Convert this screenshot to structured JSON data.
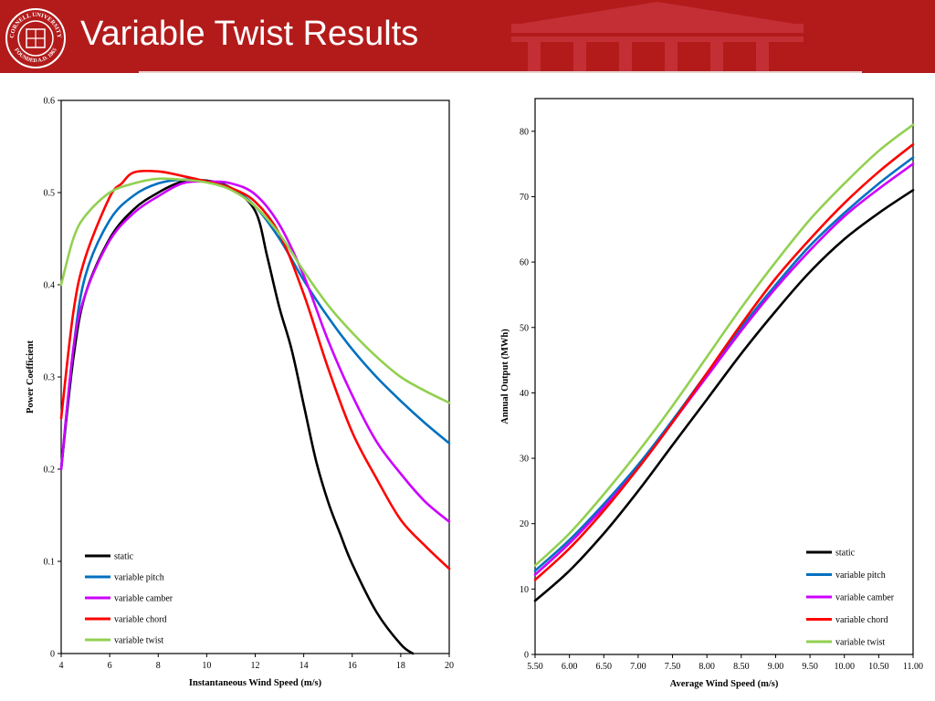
{
  "slide": {
    "title": "Variable Twist Results",
    "logo_text_top": "CORNELL UNIVERSITY",
    "logo_text_bottom": "FOUNDED A.D. 1865",
    "colors": {
      "header": "#b31b1b",
      "building": "#c6333a",
      "text": "#ffffff"
    }
  },
  "chart_data": [
    {
      "type": "line",
      "title": "",
      "xlabel": "Instantaneous Wind Speed (m/s)",
      "ylabel": "Power Coefficient",
      "xlim": [
        4,
        20
      ],
      "ylim": [
        0,
        0.6
      ],
      "xticks": [
        4,
        6,
        8,
        10,
        12,
        14,
        16,
        18,
        20
      ],
      "yticks": [
        0,
        0.1,
        0.2,
        0.3,
        0.4,
        0.5,
        0.6
      ],
      "tick_labels_x": [
        "4",
        "6",
        "8",
        "10",
        "12",
        "14",
        "16",
        "18",
        "20"
      ],
      "tick_labels_y": [
        "0",
        "0.1",
        "0.2",
        "0.3",
        "0.4",
        "0.5",
        "0.6"
      ],
      "grid": false,
      "legend": "bottom-left",
      "series": [
        {
          "name": "static",
          "color": "#000000",
          "x": [
            4,
            4.5,
            5,
            6,
            7,
            8,
            9,
            10,
            11,
            12,
            12.5,
            13,
            13.5,
            14,
            14.5,
            15,
            15.5,
            16,
            17,
            18,
            18.5
          ],
          "y": [
            0.2,
            0.32,
            0.39,
            0.45,
            0.482,
            0.5,
            0.512,
            0.513,
            0.505,
            0.48,
            0.43,
            0.375,
            0.33,
            0.27,
            0.21,
            0.165,
            0.13,
            0.097,
            0.045,
            0.01,
            0
          ]
        },
        {
          "name": "variable pitch",
          "color": "#0070c0",
          "x": [
            4,
            4.5,
            5,
            6,
            7,
            8,
            9,
            10,
            11,
            12,
            13,
            14,
            15,
            16,
            17,
            18,
            19,
            20
          ],
          "y": [
            0.2,
            0.33,
            0.41,
            0.47,
            0.497,
            0.51,
            0.514,
            0.512,
            0.505,
            0.485,
            0.45,
            0.405,
            0.365,
            0.33,
            0.3,
            0.274,
            0.25,
            0.228
          ]
        },
        {
          "name": "variable camber",
          "color": "#cc00ff",
          "x": [
            4,
            4.5,
            5,
            6,
            7,
            8,
            9,
            10,
            11,
            12,
            13,
            14,
            15,
            16,
            17,
            18,
            19,
            20
          ],
          "y": [
            0.2,
            0.33,
            0.39,
            0.448,
            0.478,
            0.496,
            0.51,
            0.512,
            0.51,
            0.498,
            0.465,
            0.41,
            0.34,
            0.28,
            0.23,
            0.195,
            0.165,
            0.143
          ]
        },
        {
          "name": "variable chord",
          "color": "#ff0000",
          "x": [
            4,
            4.5,
            5,
            6,
            6.5,
            7,
            8,
            9,
            10,
            11,
            12,
            13,
            14,
            15,
            16,
            17,
            18,
            19,
            20
          ],
          "y": [
            0.255,
            0.37,
            0.43,
            0.495,
            0.51,
            0.522,
            0.523,
            0.518,
            0.512,
            0.505,
            0.49,
            0.455,
            0.39,
            0.31,
            0.24,
            0.19,
            0.145,
            0.117,
            0.092
          ]
        },
        {
          "name": "variable twist",
          "color": "#92d050",
          "x": [
            4,
            4.5,
            5,
            6,
            7,
            8,
            9,
            10,
            11,
            12,
            13,
            14,
            15,
            16,
            17,
            18,
            19,
            20
          ],
          "y": [
            0.4,
            0.45,
            0.475,
            0.5,
            0.51,
            0.515,
            0.514,
            0.511,
            0.503,
            0.485,
            0.455,
            0.415,
            0.378,
            0.348,
            0.322,
            0.3,
            0.285,
            0.272
          ]
        }
      ]
    },
    {
      "type": "line",
      "title": "",
      "xlabel": "Average Wind Speed (m/s)",
      "ylabel": "Annual Output (MWh)",
      "xlim": [
        5.5,
        11
      ],
      "ylim": [
        0,
        85
      ],
      "xticks": [
        5.5,
        6,
        6.5,
        7,
        7.5,
        8,
        8.5,
        9,
        9.5,
        10,
        10.5,
        11
      ],
      "yticks": [
        0,
        10,
        20,
        30,
        40,
        50,
        60,
        70,
        80
      ],
      "tick_labels_x": [
        "5.50",
        "6.00",
        "6.50",
        "7.00",
        "7.50",
        "8.00",
        "8.50",
        "9.00",
        "9.50",
        "10.00",
        "10.50",
        "11.00"
      ],
      "tick_labels_y": [
        "0",
        "10",
        "20",
        "30",
        "40",
        "50",
        "60",
        "70",
        "80"
      ],
      "grid": false,
      "legend": "bottom-right",
      "series": [
        {
          "name": "static",
          "color": "#000000",
          "x": [
            5.5,
            6,
            6.5,
            7,
            7.5,
            8,
            8.5,
            9,
            9.5,
            10,
            10.5,
            11
          ],
          "y": [
            8.2,
            12.8,
            18.5,
            25,
            32,
            39,
            46,
            52.5,
            58.5,
            63.5,
            67.5,
            71
          ]
        },
        {
          "name": "variable pitch",
          "color": "#0070c0",
          "x": [
            5.5,
            6,
            6.5,
            7,
            7.5,
            8,
            8.5,
            9,
            9.5,
            10,
            10.5,
            11
          ],
          "y": [
            12.8,
            17.5,
            23,
            29,
            35.8,
            43,
            50,
            56.5,
            62.5,
            67.5,
            72,
            76
          ]
        },
        {
          "name": "variable camber",
          "color": "#cc00ff",
          "x": [
            5.5,
            6,
            6.5,
            7,
            7.5,
            8,
            8.5,
            9,
            9.5,
            10,
            10.5,
            11
          ],
          "y": [
            12.2,
            17,
            22.5,
            28.5,
            35.5,
            42.5,
            49.5,
            56,
            61.8,
            67,
            71.2,
            75
          ]
        },
        {
          "name": "variable chord",
          "color": "#ff0000",
          "x": [
            5.5,
            6,
            6.5,
            7,
            7.5,
            8,
            8.5,
            9,
            9.5,
            10,
            10.5,
            11
          ],
          "y": [
            11.4,
            16.2,
            22,
            28.5,
            35.5,
            43,
            50.5,
            57.5,
            63.5,
            69,
            73.8,
            78
          ]
        },
        {
          "name": "variable twist",
          "color": "#92d050",
          "x": [
            5.5,
            6,
            6.5,
            7,
            7.5,
            8,
            8.5,
            9,
            9.5,
            10,
            10.5,
            11
          ],
          "y": [
            13.6,
            18.5,
            24.5,
            31,
            38,
            45.5,
            53,
            60,
            66.5,
            72,
            77,
            81
          ]
        }
      ]
    }
  ]
}
